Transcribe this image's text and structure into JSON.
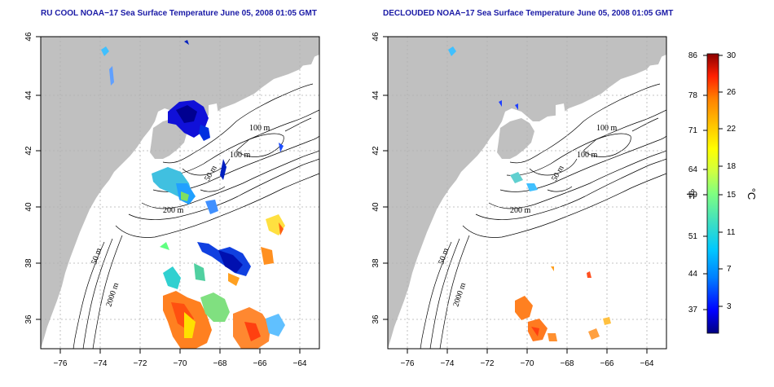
{
  "panels": [
    {
      "id": "left",
      "title": "RU COOL NOAA−17 Sea Surface Temperature June 05, 2008 01:05 GMT"
    },
    {
      "id": "right",
      "title": "DECLOUDED NOAA−17 Sea Surface Temperature June 05, 2008 01:05 GMT"
    }
  ],
  "axes": {
    "longitude_ticks": [
      "−76",
      "−74",
      "−72",
      "−70",
      "−68",
      "−66",
      "−64"
    ],
    "latitude_ticks": [
      "46",
      "44",
      "42",
      "40",
      "38",
      "36"
    ],
    "lon_range": [
      -77.0,
      -63.0
    ],
    "lat_range": [
      35.0,
      46.0
    ]
  },
  "contour_labels": [
    "100 m",
    "100 m",
    "50 m",
    "200 m",
    "50 m",
    "2000 m"
  ],
  "colorbar": {
    "fahrenheit_label": "°F",
    "celsius_label": "°C",
    "fahrenheit_ticks": [
      "86",
      "78",
      "71",
      "64",
      "59",
      "51",
      "44",
      "37"
    ],
    "celsius_ticks": [
      "30",
      "26",
      "22",
      "18",
      "15",
      "11",
      "7",
      "3"
    ],
    "range_celsius": [
      0,
      30
    ],
    "colors": [
      "#000080",
      "#0000ff",
      "#0080ff",
      "#00c0ff",
      "#40e0d0",
      "#80ff80",
      "#d0ff40",
      "#ffff00",
      "#ffc000",
      "#ff8000",
      "#ff3000",
      "#c00000",
      "#800000"
    ]
  },
  "colors": {
    "land": "#c0c0c0",
    "title": "#1a1aa6",
    "grid": "#b0b0b0"
  }
}
